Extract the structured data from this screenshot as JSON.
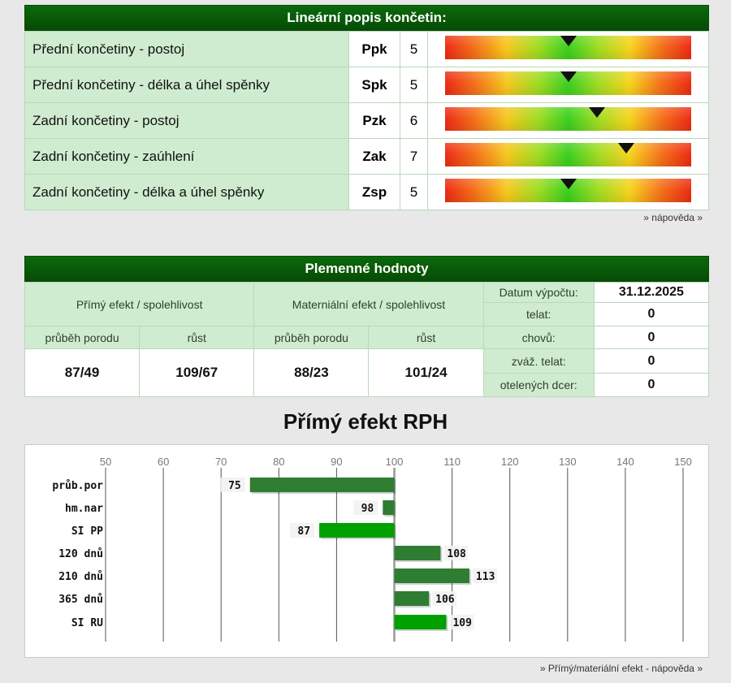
{
  "linear": {
    "title": "Lineární popis končetin:",
    "scale_min": 1,
    "scale_max": 9,
    "rows": [
      {
        "name": "Přední končetiny - postoj",
        "code": "Ppk",
        "value": 5
      },
      {
        "name": "Přední končetiny - délka a úhel spěnky",
        "code": "Spk",
        "value": 5
      },
      {
        "name": "Zadní končetiny - postoj",
        "code": "Pzk",
        "value": 6
      },
      {
        "name": "Zadní končetiny - zaúhlení",
        "code": "Zak",
        "value": 7
      },
      {
        "name": "Zadní končetiny - délka a úhel spěnky",
        "code": "Zsp",
        "value": 5
      }
    ],
    "help_link": "» nápověda »"
  },
  "breeding": {
    "title": "Plemenné hodnoty",
    "direct_header": "Přímý efekt / spolehlivost",
    "maternal_header": "Materniální efekt / spolehlivost",
    "sub_calving": "průběh porodu",
    "sub_growth": "růst",
    "direct_calving": "87/49",
    "direct_growth": "109/67",
    "maternal_calving": "88/23",
    "maternal_growth": "101/24",
    "info": [
      {
        "label": "Datum výpočtu:",
        "value": "31.12.2025"
      },
      {
        "label": "telat:",
        "value": "0"
      },
      {
        "label": "chovů:",
        "value": "0"
      },
      {
        "label": "zváž. telat:",
        "value": "0"
      },
      {
        "label": "otelených dcer:",
        "value": "0"
      }
    ]
  },
  "chart_title": "Přímý efekt RPH",
  "chart_data": {
    "type": "bar",
    "title": "Přímý efekt RPH",
    "baseline": 100,
    "xlim": [
      50,
      150
    ],
    "xticks": [
      50,
      60,
      70,
      80,
      90,
      100,
      110,
      120,
      130,
      140,
      150
    ],
    "categories": [
      "průb.por",
      "hm.nar",
      "SI PP",
      "120 dnů",
      "210 dnů",
      "365 dnů",
      "SI RU"
    ],
    "values": [
      75,
      98,
      87,
      108,
      113,
      106,
      109
    ],
    "colors": [
      "#2e7d32",
      "#2e7d32",
      "#00a000",
      "#2e7d32",
      "#2e7d32",
      "#2e7d32",
      "#00a000"
    ],
    "grid": true
  },
  "chart_help_link": "» Přímý/materiální efekt - nápověda »"
}
